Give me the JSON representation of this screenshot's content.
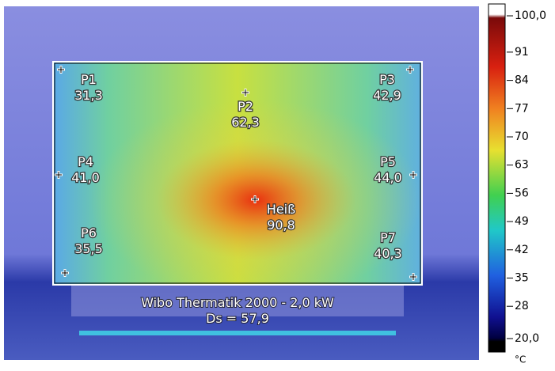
{
  "points": [
    {
      "label": "P1",
      "value": "31,3"
    },
    {
      "label": "P2",
      "value": "62,3"
    },
    {
      "label": "P3",
      "value": "42,9"
    },
    {
      "label": "P4",
      "value": "41,0"
    },
    {
      "label": "P5",
      "value": "44,0"
    },
    {
      "label": "Heiß",
      "value": "90,8"
    },
    {
      "label": "P6",
      "value": "35,5"
    },
    {
      "label": "P7",
      "value": "40,3"
    }
  ],
  "caption": {
    "title": "Wibo Thermatik 2000 - 2,0 kW",
    "ds": "Ds = 57,9"
  },
  "scale": {
    "range": [
      20,
      100
    ],
    "unit": "°C",
    "ticks": [
      {
        "value": 100,
        "label": "100,0"
      },
      91,
      84,
      77,
      70,
      63,
      56,
      49,
      42,
      35,
      28,
      {
        "value": 20,
        "label": "20,0"
      }
    ]
  }
}
